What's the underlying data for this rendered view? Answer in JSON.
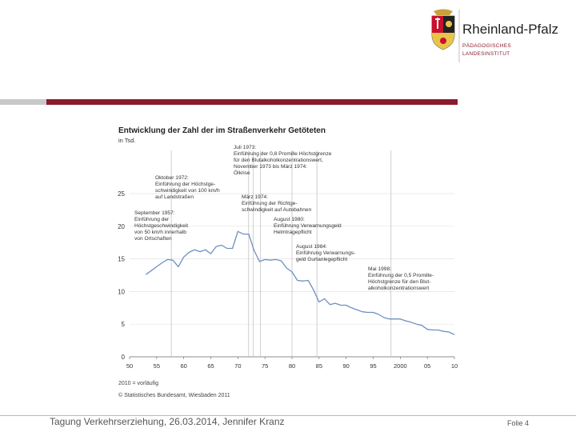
{
  "header": {
    "logo_name": "Rheinland-Pfalz",
    "institute_line1": "PÄDAGOGISCHES",
    "institute_line2": "LANDESINSTITUT",
    "colors": {
      "accent": "#8b1a2e",
      "grey_bar": "#c8c8c8"
    }
  },
  "footer": {
    "text": "Tagung Verkehrserziehung, 26.03.2014, Jennifer Kranz",
    "folio": "Folie 4"
  },
  "chart_data": {
    "type": "line",
    "title": "Entwicklung der Zahl der im Straßenverkehr Getöteten",
    "subtitle": "in Tsd.",
    "ylim": [
      0,
      25
    ],
    "yticks": [
      "25",
      "20",
      "15",
      "10",
      "5",
      "0"
    ],
    "xtick_labels": [
      "50",
      "55",
      "60",
      "65",
      "70",
      "75",
      "80",
      "85",
      "90",
      "95",
      "2000",
      "05",
      "10"
    ],
    "note": "2010 = vorläufig",
    "source": "© Statistisches Bundesamt, Wiesbaden 2011",
    "line_color": "#6f8fc2",
    "series": [
      {
        "x": [
          1953,
          1954,
          1955,
          1956,
          1957,
          1958,
          1959,
          1960,
          1961,
          1962,
          1963,
          1964,
          1965,
          1966,
          1967,
          1968,
          1969,
          1970,
          1971,
          1972,
          1973,
          1974,
          1975,
          1976,
          1977,
          1978,
          1979,
          1980,
          1981,
          1982,
          1983,
          1984,
          1985,
          1986,
          1987,
          1988,
          1989,
          1990,
          1991,
          1992,
          1993,
          1994,
          1995,
          1996,
          1997,
          1998,
          1999,
          2000,
          2001,
          2002,
          2003,
          2004,
          2005,
          2006,
          2007,
          2008,
          2009,
          2010
        ],
        "y": [
          12.6,
          13.2,
          13.8,
          14.4,
          14.9,
          14.8,
          13.8,
          15.3,
          16.0,
          16.4,
          16.1,
          16.4,
          15.8,
          16.9,
          17.1,
          16.6,
          16.6,
          19.2,
          18.8,
          18.8,
          16.3,
          14.6,
          14.9,
          14.8,
          14.9,
          14.7,
          13.6,
          13.0,
          11.7,
          11.6,
          11.7,
          10.2,
          8.4,
          8.9,
          8.0,
          8.2,
          7.9,
          7.9,
          7.5,
          7.2,
          6.9,
          6.8,
          6.8,
          6.5,
          6.0,
          5.8,
          5.8,
          5.8,
          5.5,
          5.3,
          5.0,
          4.8,
          4.2,
          4.1,
          4.1,
          3.9,
          3.8,
          3.4
        ]
      }
    ],
    "annotations": [
      {
        "year": 1972.8,
        "lines": [
          "Juli 1973:",
          "Einführung der 0,8 Promille Höchstgrenze",
          "für den Blutalkoholkonzentrationswert,",
          "November 1973 bis März 1974:",
          "Ölkrise"
        ]
      },
      {
        "year": 1972,
        "lines": [
          "Oktober 1972:",
          "Einführung der Höchstge-",
          "schwindigkeit von 100 km/h",
          "auf Landstraßen"
        ]
      },
      {
        "year": 1974.2,
        "lines": [
          "März 1974:",
          "Einführung der Richtge-",
          "schwindigkeit auf Autobahnen"
        ]
      },
      {
        "year": 1957.7,
        "lines": [
          "September 1957:",
          "Einführung der",
          "Höchstgeschwindigkeit",
          "von 50 km/h innerhalb",
          "von Ortschaften"
        ]
      },
      {
        "year": 1980,
        "lines": [
          "August 1980:",
          "Einführung Verwarnungsgeld",
          "Helmtragepflicht"
        ]
      },
      {
        "year": 1984.6,
        "lines": [
          "August 1984:",
          "Einführung Verwarnungs-",
          "geld Gurtanlegepflicht"
        ]
      },
      {
        "year": 1998.3,
        "lines": [
          "Mai 1998:",
          "Einführung der 0,5 Promille-",
          "Höchstgrenze für den Blut-",
          "alkoholkonzentrationswert"
        ]
      }
    ]
  }
}
